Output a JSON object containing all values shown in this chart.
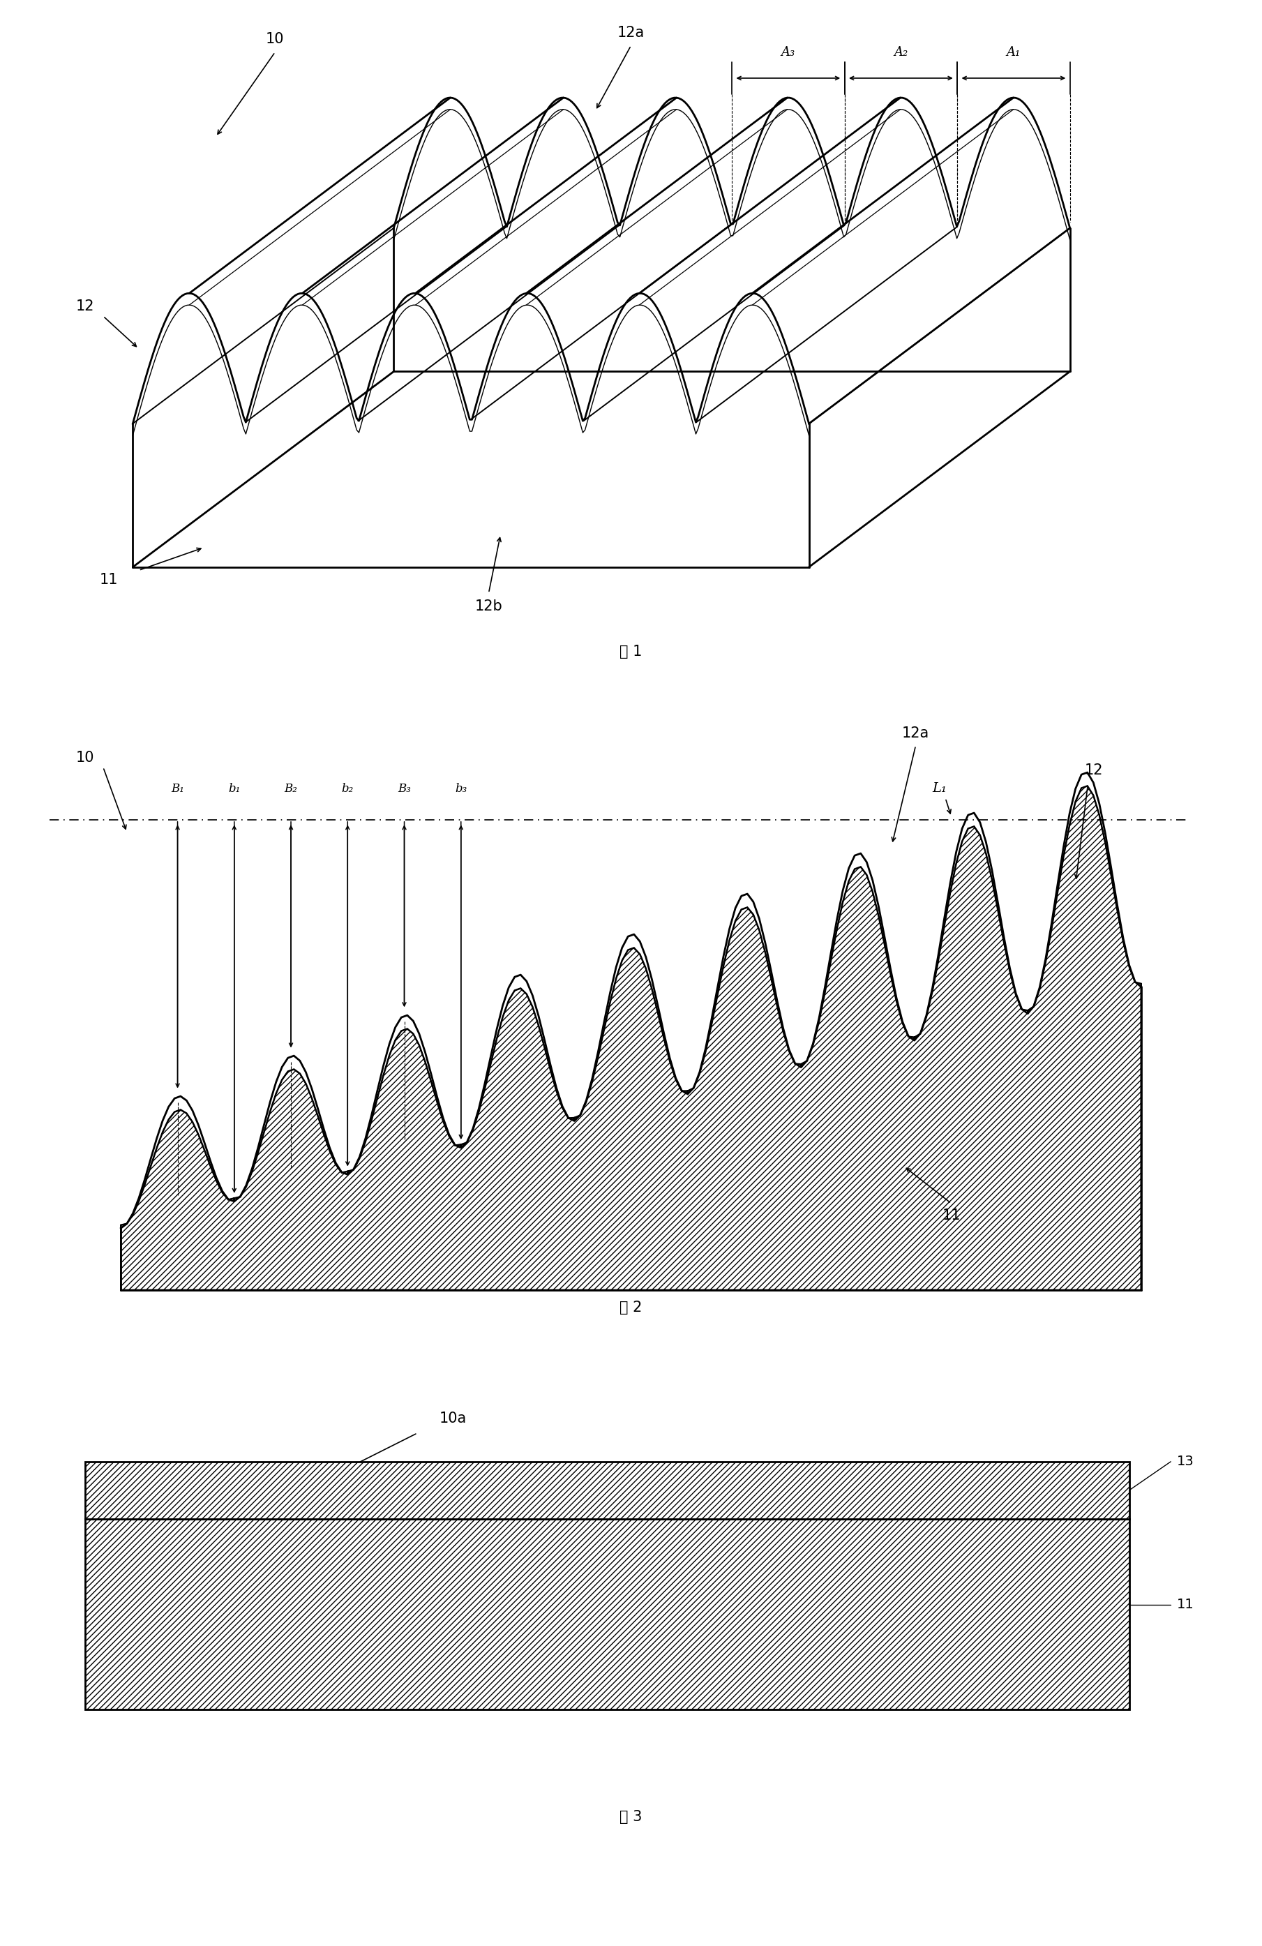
{
  "fig_width": 18.09,
  "fig_height": 27.89,
  "bg_color": "#ffffff",
  "fig1": {
    "title": "图 1",
    "label_10": "10",
    "label_11": "11",
    "label_12": "12",
    "label_12a": "12a",
    "label_12b": "12b",
    "label_A1": "A₁",
    "label_A2": "A₂",
    "label_A3": "A₃"
  },
  "fig2": {
    "title": "图 2",
    "label_L1": "L₁",
    "label_10": "10",
    "label_11": "11",
    "label_12": "12",
    "label_12a": "12a",
    "label_B1": "B₁",
    "label_b1": "b₁",
    "label_B2": "B₂",
    "label_b2": "b₂",
    "label_B3": "B₃",
    "label_b3": "b₃"
  },
  "fig3": {
    "title": "图 3",
    "label_10a": "10a",
    "label_11": "11",
    "label_13": "13"
  }
}
